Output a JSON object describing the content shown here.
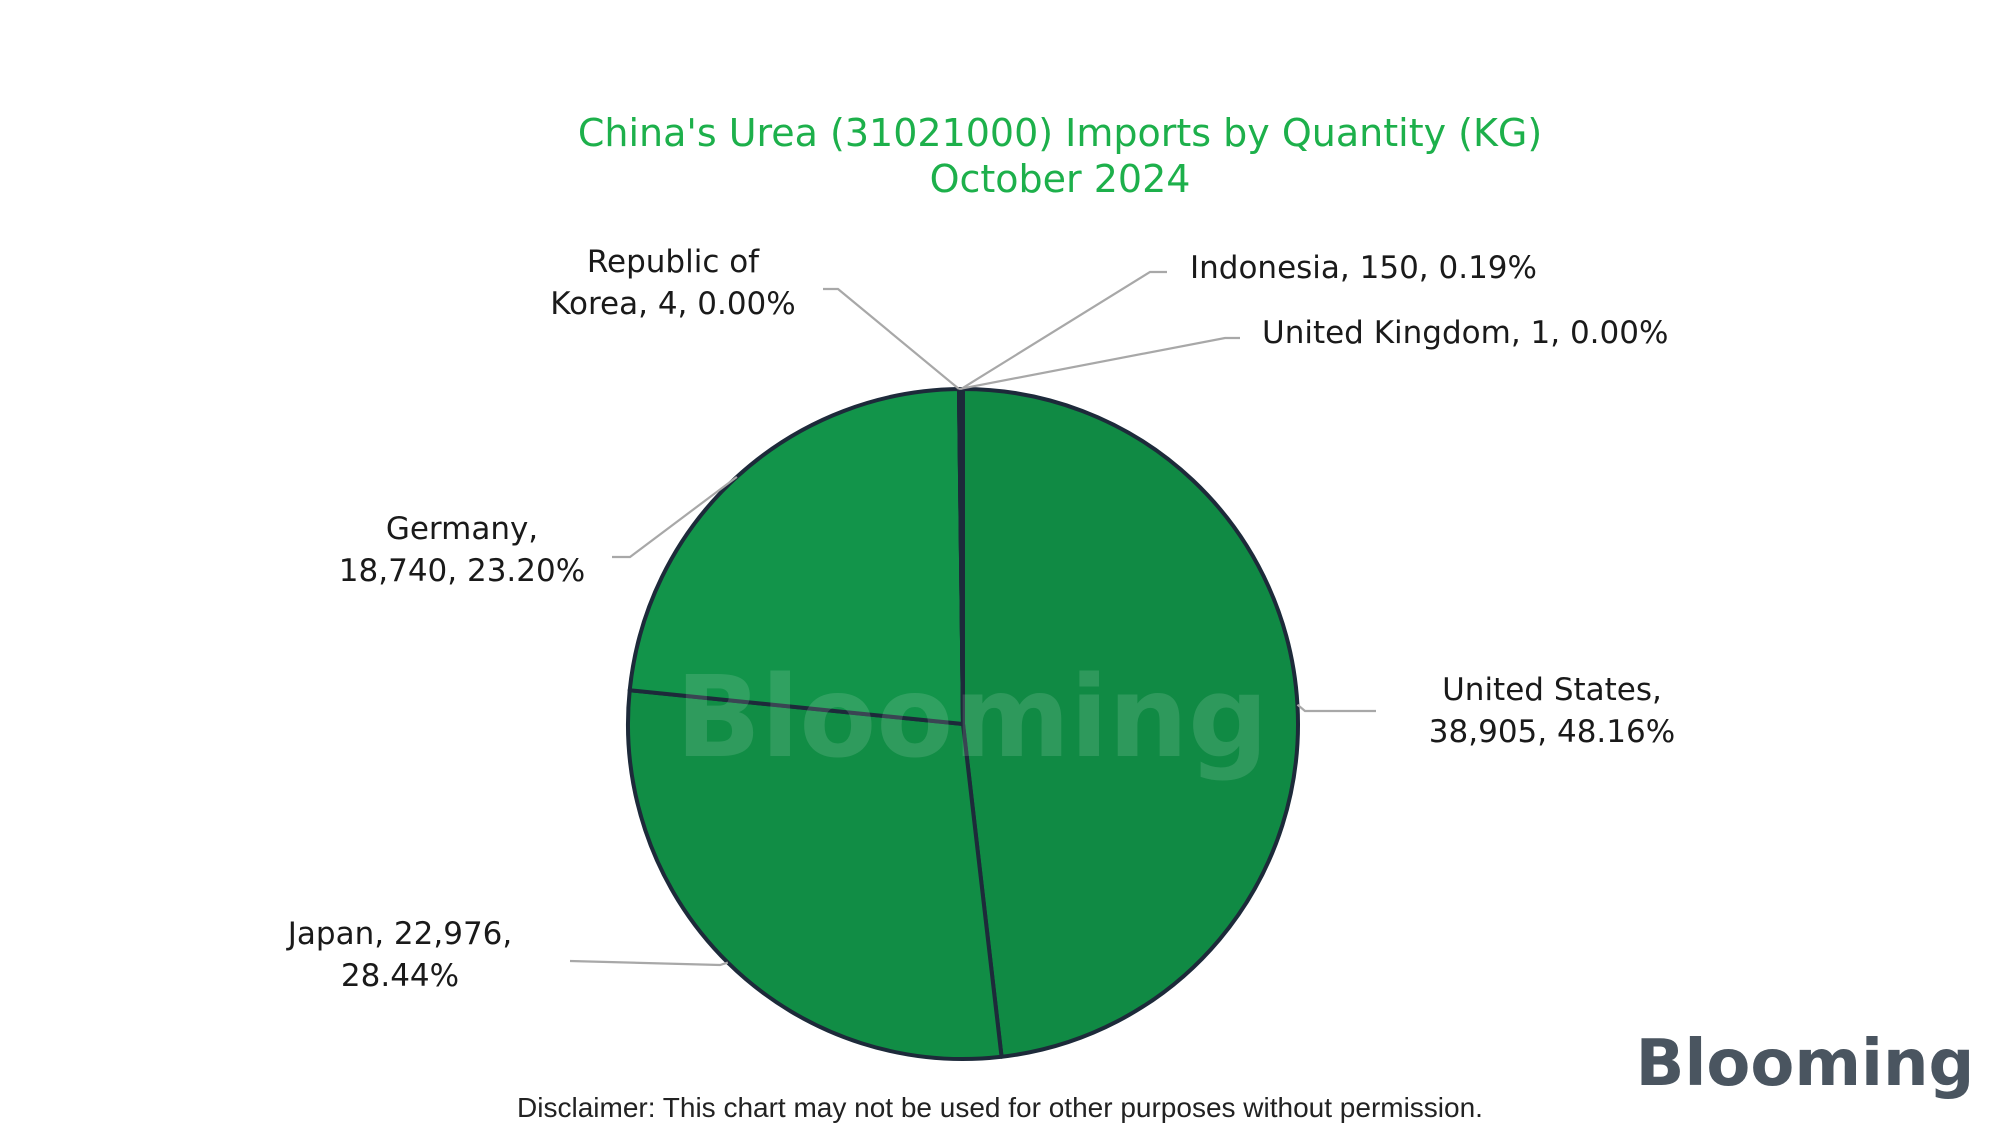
{
  "chart_data": {
    "type": "pie",
    "title": "China's Urea (31021000) Imports by Quantity (KG)",
    "subtitle": "October 2024",
    "slices": [
      {
        "name": "United States",
        "value": 38905,
        "percent": "48.16%",
        "label_lines": [
          "United States,",
          "38,905, 48.16%"
        ],
        "color": "#108a44"
      },
      {
        "name": "Japan",
        "value": 22976,
        "percent": "28.44%",
        "label_lines": [
          "Japan, 22,976,",
          "28.44%"
        ],
        "color": "#118d45"
      },
      {
        "name": "Germany",
        "value": 18740,
        "percent": "23.20%",
        "label_lines": [
          "Germany,",
          "18,740, 23.20%"
        ],
        "color": "#12944a"
      },
      {
        "name": "Republic of Korea",
        "value": 4,
        "percent": "0.00%",
        "label_lines": [
          "Republic of",
          "Korea, 4, 0.00%"
        ],
        "color": "#1d2a3a"
      },
      {
        "name": "Indonesia",
        "value": 150,
        "percent": "0.19%",
        "label_lines": [
          "Indonesia, 150, 0.19%"
        ],
        "color": "#1d2a3a"
      },
      {
        "name": "United Kingdom",
        "value": 1,
        "percent": "0.00%",
        "label_lines": [
          "United Kingdom, 1, 0.00%"
        ],
        "color": "#1d2a3a"
      }
    ],
    "colors": {
      "title": "#1db04b",
      "outline": "#1d2a3a",
      "leader": "#a8a8a8"
    }
  },
  "watermark": "Blooming",
  "logo": "Blooming",
  "disclaimer": "Disclaimer: This chart may not be used for other purposes without permission."
}
